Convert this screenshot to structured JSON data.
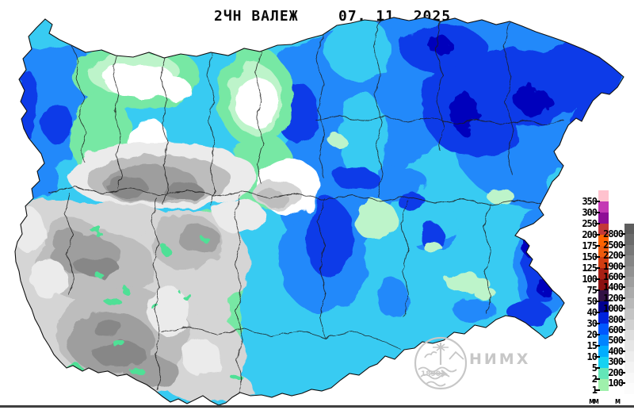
{
  "title": {
    "product": "2ЧН ВАЛЕЖ",
    "date": "07. 11. 2025"
  },
  "watermark": {
    "org": "НИМХ",
    "year": "1890",
    "color": "#C7C7C7"
  },
  "legend": {
    "precipitation": {
      "unit": "мм",
      "labels": [
        "350",
        "300",
        "250",
        "200",
        "175",
        "150",
        "125",
        "100",
        "75",
        "50",
        "40",
        "30",
        "20",
        "15",
        "10",
        "5",
        "2",
        "1"
      ],
      "colors": [
        "#FFC2CE",
        "#C438B4",
        "#8E0D96",
        "#C43838",
        "#FF6300",
        "#EE5A0D",
        "#D23D12",
        "#A82014",
        "#8C1110",
        "#331245",
        "#000091",
        "#0023DD",
        "#0058FF",
        "#0084FF",
        "#00AEFF",
        "#15D2F2",
        "#63E6B8",
        "#9FF0AC"
      ]
    },
    "elevation": {
      "unit": "м",
      "labels": [
        "2800",
        "2500",
        "2200",
        "1900",
        "1600",
        "1400",
        "1200",
        "1000",
        "800",
        "600",
        "500",
        "400",
        "300",
        "200",
        "100"
      ],
      "colors": [
        "#5E5E5E",
        "#6B6B6B",
        "#787878",
        "#858585",
        "#919191",
        "#9E9E9E",
        "#ABABAB",
        "#B8B8B8",
        "#C4C4C4",
        "#D1D1D1",
        "#DEDEDE",
        "#E6E6E6",
        "#EDEDED",
        "#F3F3F3",
        "#F8F8F8",
        "#FCFCFC"
      ]
    }
  },
  "map": {
    "palette": {
      "sea": "#FFFFFF",
      "cyan": "#38CBF2",
      "sky": "#2389FA",
      "deep": "#0B3BE8",
      "navy": "#0003BC",
      "green": "#77E8A4",
      "palegreen": "#BDF4CA",
      "speck": "#4FE096",
      "white": "#FFFFFF",
      "grayXL": "#EBEBEB",
      "grayL": "#D5D5D5",
      "gray": "#BDBDBD",
      "grayM": "#9E9E9E",
      "grayD": "#878787",
      "line": "#1C1C1C",
      "outline": "#101010"
    },
    "frame_color": "#3F3F3F"
  }
}
